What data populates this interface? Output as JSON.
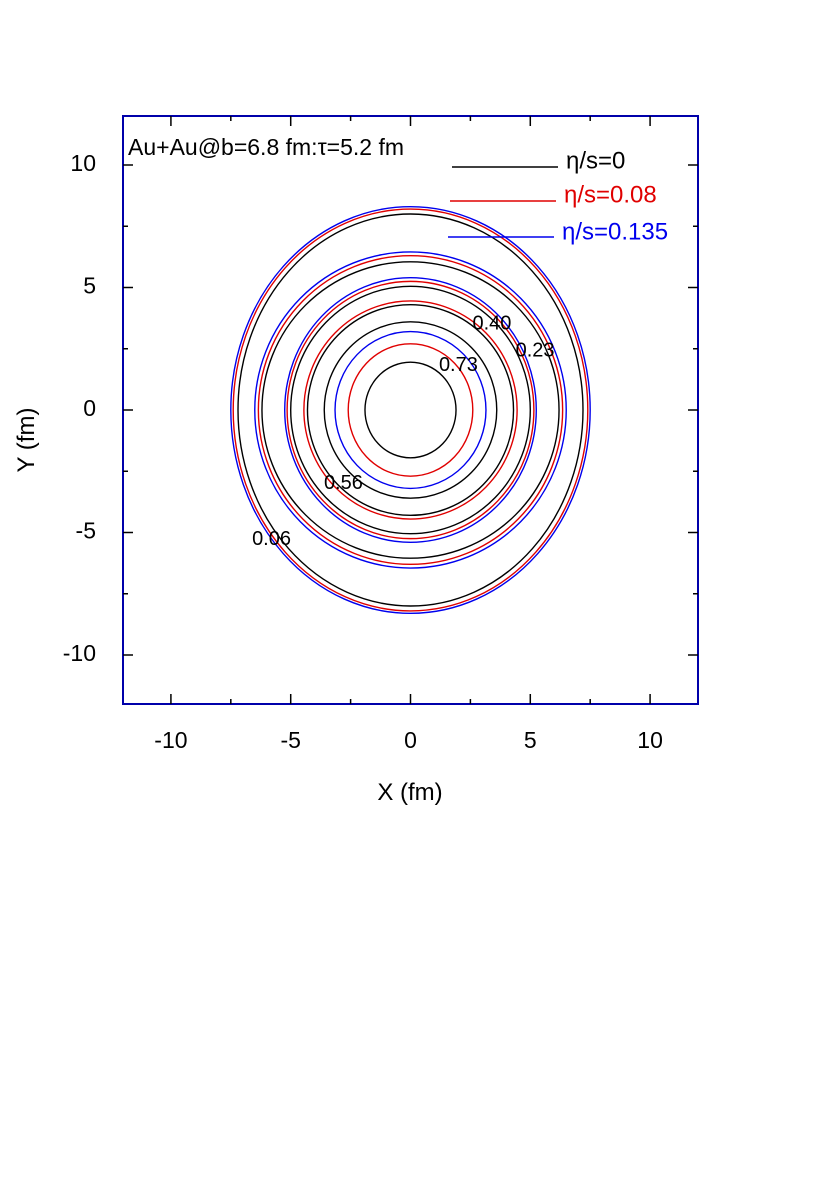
{
  "chart_data": {
    "type": "contour",
    "annotation": "Au+Au@b=6.8 fm:τ=5.2 fm",
    "xlabel": "X (fm)",
    "ylabel": "Y (fm)",
    "xlim": [
      -12,
      12
    ],
    "ylim": [
      -12,
      12
    ],
    "x_ticks": [
      -10,
      -5,
      0,
      5,
      10
    ],
    "y_ticks": [
      -10,
      -5,
      0,
      5,
      10
    ],
    "x_tick_labels": [
      "-10",
      "-5",
      "0",
      "5",
      "10"
    ],
    "y_tick_labels": [
      "-10",
      "-5",
      "0",
      "5",
      "10"
    ],
    "grid": false,
    "legend_position": "top-right",
    "frame_color": "#0000aa",
    "series": [
      {
        "name": "η/s=0",
        "color": "#000000",
        "contours": [
          {
            "rx": 7.2,
            "ry": 8.0
          },
          {
            "rx": 6.2,
            "ry": 6.05
          },
          {
            "rx": 5.0,
            "ry": 5.05
          },
          {
            "rx": 4.3,
            "ry": 4.3
          },
          {
            "rx": 3.6,
            "ry": 3.6
          },
          {
            "rx": 1.9,
            "ry": 1.95
          }
        ]
      },
      {
        "name": "η/s=0.08",
        "color": "#e00000",
        "contours": [
          {
            "rx": 7.4,
            "ry": 8.2
          },
          {
            "rx": 6.35,
            "ry": 6.3
          },
          {
            "rx": 5.15,
            "ry": 5.25
          },
          {
            "rx": 4.45,
            "ry": 4.45
          },
          {
            "rx": 2.6,
            "ry": 2.7
          }
        ]
      },
      {
        "name": "η/s=0.135",
        "color": "#0000ee",
        "contours": [
          {
            "rx": 7.5,
            "ry": 8.3
          },
          {
            "rx": 6.5,
            "ry": 6.45
          },
          {
            "rx": 5.25,
            "ry": 5.4
          },
          {
            "rx": 3.15,
            "ry": 3.2
          }
        ]
      }
    ],
    "contour_labels": [
      {
        "text": "0.40",
        "x": 3.4,
        "y": 3.5
      },
      {
        "text": "0.23",
        "x": 5.2,
        "y": 2.4
      },
      {
        "text": "0.73",
        "x": 2.0,
        "y": 1.8
      },
      {
        "text": "0.56",
        "x": -2.8,
        "y": -3.0
      },
      {
        "text": "0.06",
        "x": -5.8,
        "y": -5.3
      }
    ]
  }
}
